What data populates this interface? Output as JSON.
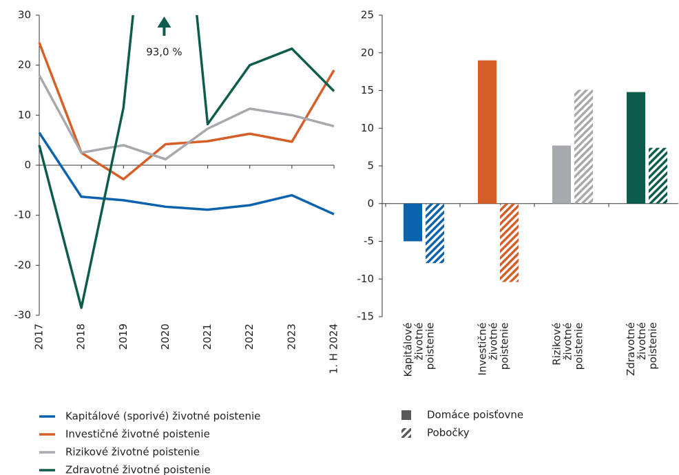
{
  "chart_data": [
    {
      "type": "line",
      "categories": [
        "2017",
        "2018",
        "2019",
        "2020",
        "2021",
        "2022",
        "2023",
        "1. H 2024"
      ],
      "series": [
        {
          "name": "Kapitálové (sporivé) životné poistenie",
          "color": "#0b62ad",
          "values": [
            6.5,
            -6.3,
            -7.0,
            -8.3,
            -8.9,
            -8.0,
            -6.0,
            -9.8
          ]
        },
        {
          "name": "Investičné životné poistenie",
          "color": "#d65f27",
          "values": [
            24.5,
            2.5,
            -2.8,
            4.2,
            4.8,
            6.3,
            4.7,
            19.0
          ]
        },
        {
          "name": "Rizikové životné poistenie",
          "color": "#a7a9ac",
          "values": [
            18.0,
            2.5,
            4.0,
            1.2,
            7.3,
            11.3,
            10.0,
            7.8
          ]
        },
        {
          "name": "Zdravotné životné poistenie",
          "color": "#0d5c4c",
          "values": [
            4.0,
            -28.5,
            11.5,
            93.0,
            8.2,
            20.0,
            23.3,
            14.8
          ],
          "value_labels": [
            null,
            null,
            null,
            "93,0 %",
            null,
            null,
            null,
            null
          ]
        }
      ],
      "ylim": [
        -30,
        30
      ],
      "yticks": [
        -30,
        -20,
        -10,
        0,
        10,
        20,
        30
      ],
      "legend": "bottom"
    },
    {
      "type": "bar",
      "categories": [
        "Kapitálové životné poistenie",
        "Investičné životné poistenie",
        "Rizikové životné poistenie",
        "Zdravotné životné poistenie"
      ],
      "colors": [
        "#0b62ad",
        "#d65f27",
        "#a7a9ac",
        "#0d5c4c"
      ],
      "series": [
        {
          "name": "Domáce poisťovne",
          "pattern": "solid",
          "color": "#58595b",
          "values": [
            -5.0,
            19.0,
            7.7,
            14.8
          ]
        },
        {
          "name": "Pobočky",
          "pattern": "hatch",
          "color": "#58595b",
          "values": [
            -7.9,
            -10.4,
            15.1,
            7.4
          ]
        }
      ],
      "ylim": [
        -15,
        25
      ],
      "yticks": [
        -15,
        -10,
        -5,
        0,
        5,
        10,
        15,
        20,
        25
      ],
      "legend": "bottom"
    }
  ]
}
